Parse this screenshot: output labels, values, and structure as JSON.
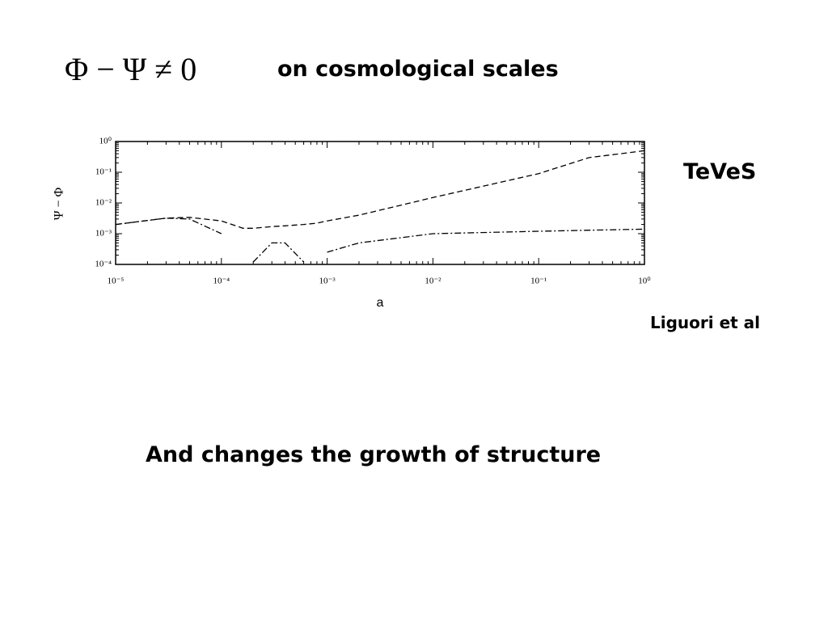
{
  "formula": "Φ − Ψ ≠ 0",
  "heading": "on cosmological scales",
  "model_label": "TeVeS",
  "citation": "Liguori et al",
  "conclusion": "And changes the growth of structure",
  "chart_data": {
    "type": "line",
    "x_label": "a",
    "y_label": "Ψ − Φ",
    "log_x": true,
    "log_y": true,
    "xlim": [
      1e-05,
      1
    ],
    "ylim": [
      0.0001,
      1
    ],
    "xticks": [
      {
        "value": 1e-05,
        "label": "10⁻⁵"
      },
      {
        "value": 0.0001,
        "label": "10⁻⁴"
      },
      {
        "value": 0.001,
        "label": "10⁻³"
      },
      {
        "value": 0.01,
        "label": "10⁻²"
      },
      {
        "value": 0.1,
        "label": "10⁻¹"
      },
      {
        "value": 1,
        "label": "10⁰"
      }
    ],
    "yticks": [
      {
        "value": 0.0001,
        "label": "10⁻⁴"
      },
      {
        "value": 0.001,
        "label": "10⁻³"
      },
      {
        "value": 0.01,
        "label": "10⁻²"
      },
      {
        "value": 0.1,
        "label": "10⁻¹"
      },
      {
        "value": 1,
        "label": "10⁰"
      }
    ],
    "x": [
      1e-05,
      3e-05,
      5e-05,
      0.0001,
      0.00016,
      0.0002,
      0.0003,
      0.0004,
      0.0006,
      0.0008,
      0.001,
      0.002,
      0.01,
      0.1,
      0.3,
      1
    ],
    "series": [
      {
        "color": "#000000",
        "dash": "dashed",
        "values": [
          0.002,
          0.0032,
          0.0034,
          0.0026,
          0.0015,
          0.0015,
          0.0017,
          0.0018,
          0.002,
          0.0022,
          0.0026,
          0.004,
          0.015,
          0.09,
          0.3,
          0.5
        ]
      },
      {
        "color": "#000000",
        "dash": "dashdot",
        "values": [
          0.002,
          0.0032,
          0.003,
          0.001,
          null,
          0.00012,
          0.0005,
          0.0005,
          0.00012,
          null,
          0.00025,
          0.0005,
          0.001,
          0.0012,
          0.0013,
          0.0014
        ]
      }
    ]
  }
}
